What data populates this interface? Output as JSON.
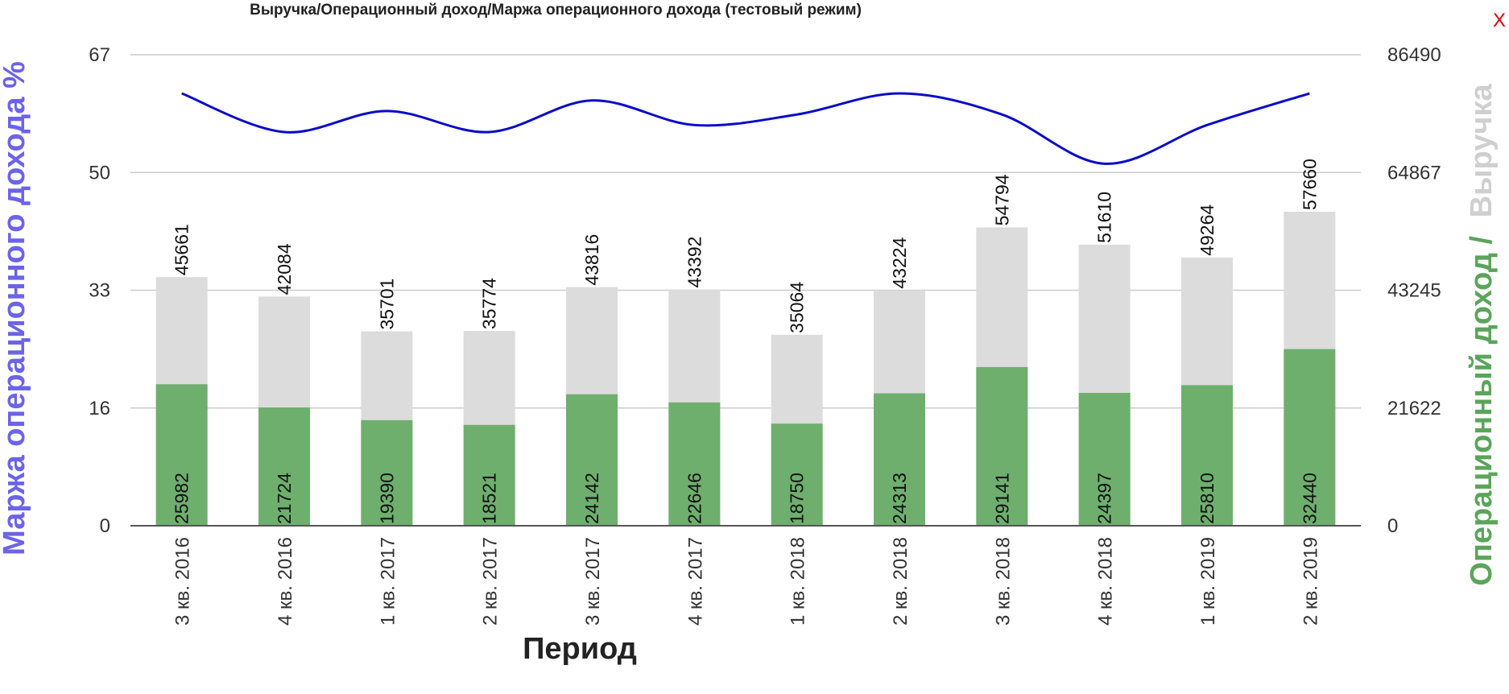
{
  "close_label": "X",
  "chart_data": {
    "type": "bar",
    "title": "Выручка/Операционный доход/Маржа операционного дохода (тестовый режим)",
    "xlabel": "Период",
    "ylabel_left": "Маржа операционного дохода %",
    "ylabel_right_part1": "Операционный доход /",
    "ylabel_right_part2": "Выручка",
    "categories": [
      "3 кв. 2016",
      "4 кв. 2016",
      "1 кв. 2017",
      "2 кв. 2017",
      "3 кв. 2017",
      "4 кв. 2017",
      "1 кв. 2018",
      "2 кв. 2018",
      "3 кв. 2018",
      "4 кв. 2018",
      "1 кв. 2019",
      "2 кв. 2019"
    ],
    "left_axis": {
      "ticks": [
        "0",
        "16",
        "33",
        "50",
        "67"
      ],
      "ylim": [
        0,
        67
      ]
    },
    "right_axis": {
      "ticks": [
        "0",
        "21622",
        "43245",
        "64867",
        "86490"
      ],
      "ylim": [
        0,
        86490
      ]
    },
    "grid": true,
    "series": [
      {
        "name": "Выручка",
        "axis": "right",
        "kind": "bar",
        "color": "#dcdcdc",
        "values": [
          45661,
          42084,
          35701,
          35774,
          43816,
          43392,
          35064,
          43224,
          54794,
          51610,
          49264,
          57660
        ]
      },
      {
        "name": "Операционный доход",
        "axis": "right",
        "kind": "bar",
        "color": "#6eaf6e",
        "values": [
          25982,
          21724,
          19390,
          18521,
          24142,
          22646,
          18750,
          24313,
          29141,
          24397,
          25810,
          32440
        ]
      },
      {
        "name": "Маржа операционного дохода %",
        "axis": "left",
        "kind": "line",
        "color": "#0a0ac8",
        "values": [
          61.5,
          56,
          59,
          56,
          60.5,
          57,
          58.5,
          61.5,
          58.5,
          51.5,
          57,
          61.5
        ]
      }
    ],
    "colors": {
      "left_axis_title": "#6b63e8",
      "right_axis_title_green": "#5aa55a",
      "right_axis_title_gray": "#cfcfcf"
    }
  }
}
